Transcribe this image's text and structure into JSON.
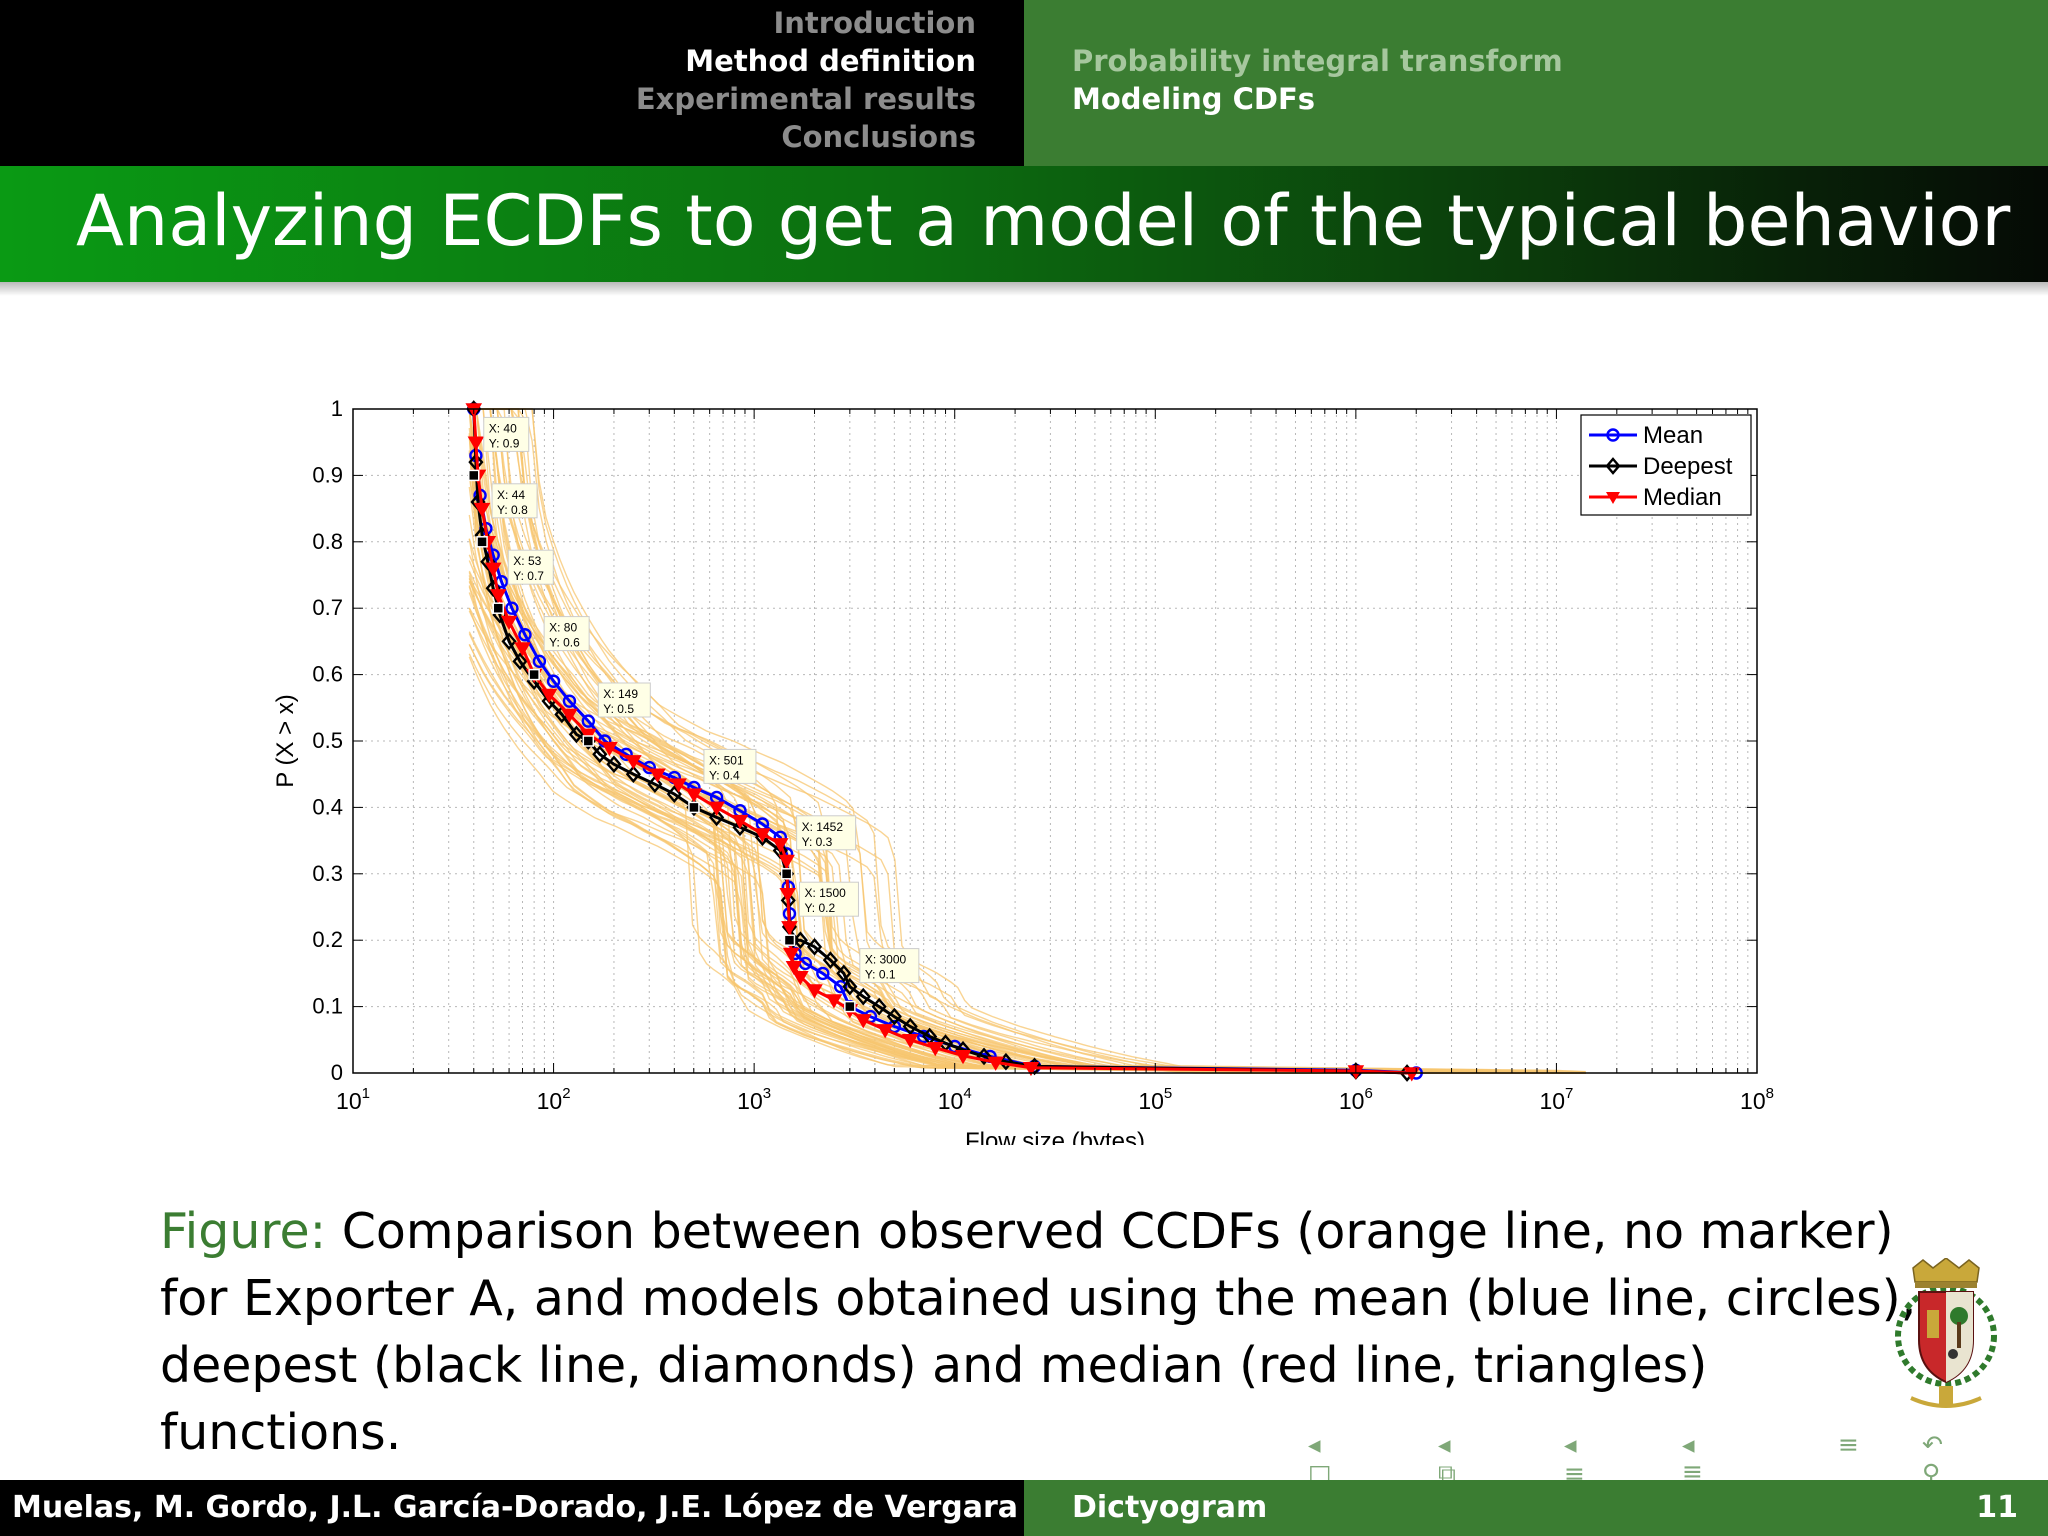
{
  "nav": {
    "sections": [
      {
        "label": "Introduction",
        "active": false
      },
      {
        "label": "Method definition",
        "active": true
      },
      {
        "label": "Experimental results",
        "active": false
      },
      {
        "label": "Conclusions",
        "active": false
      }
    ],
    "subsections": [
      {
        "label": "Probability integral transform",
        "active": false
      },
      {
        "label": "Modeling CDFs",
        "active": true
      }
    ]
  },
  "frame": {
    "title": "Analyzing ECDFs to get a model of the typical behavior"
  },
  "chart_data": {
    "type": "line",
    "xscale": "log",
    "xlabel": "Flow size (bytes)",
    "ylabel": "P (X > x)",
    "xlim": [
      10,
      100000000
    ],
    "ylim": [
      0,
      1
    ],
    "xtick_labels": [
      {
        "value": 10,
        "base": "10",
        "exp": "1"
      },
      {
        "value": 100,
        "base": "10",
        "exp": "2"
      },
      {
        "value": 1000,
        "base": "10",
        "exp": "3"
      },
      {
        "value": 10000,
        "base": "10",
        "exp": "4"
      },
      {
        "value": 100000,
        "base": "10",
        "exp": "5"
      },
      {
        "value": 1000000,
        "base": "10",
        "exp": "6"
      },
      {
        "value": 10000000,
        "base": "10",
        "exp": "7"
      },
      {
        "value": 100000000,
        "base": "10",
        "exp": "8"
      }
    ],
    "ytick_labels": [
      "0",
      "0.1",
      "0.2",
      "0.3",
      "0.4",
      "0.5",
      "0.6",
      "0.7",
      "0.8",
      "0.9",
      "1"
    ],
    "grid": true,
    "legend_position": "top-right",
    "series": [
      {
        "name": "Mean",
        "color": "#0000ff",
        "marker": "circle",
        "x": [
          40,
          41,
          43,
          46,
          50,
          55,
          62,
          72,
          85,
          100,
          120,
          149,
          180,
          230,
          300,
          400,
          501,
          650,
          850,
          1100,
          1350,
          1452,
          1480,
          1500,
          1530,
          1600,
          1800,
          2200,
          2700,
          3000,
          3800,
          5000,
          7000,
          10000,
          15000,
          25000,
          1000000,
          2000000
        ],
        "y": [
          1,
          0.93,
          0.87,
          0.82,
          0.78,
          0.74,
          0.7,
          0.66,
          0.62,
          0.59,
          0.56,
          0.53,
          0.5,
          0.48,
          0.46,
          0.445,
          0.43,
          0.415,
          0.395,
          0.375,
          0.355,
          0.33,
          0.28,
          0.24,
          0.2,
          0.18,
          0.165,
          0.15,
          0.13,
          0.1,
          0.085,
          0.07,
          0.055,
          0.04,
          0.025,
          0.01,
          0.004,
          0
        ]
      },
      {
        "name": "Deepest",
        "color": "#000000",
        "marker": "diamond",
        "x": [
          40,
          41,
          42,
          44,
          47,
          50,
          54,
          60,
          68,
          80,
          95,
          110,
          130,
          149,
          170,
          200,
          250,
          320,
          400,
          501,
          650,
          850,
          1100,
          1350,
          1452,
          1480,
          1500,
          1550,
          1700,
          2000,
          2400,
          2800,
          3000,
          3500,
          4200,
          5000,
          6000,
          7500,
          9000,
          11000,
          14000,
          18000,
          25000,
          1000000,
          1800000
        ],
        "y": [
          1,
          0.92,
          0.86,
          0.81,
          0.77,
          0.73,
          0.69,
          0.65,
          0.62,
          0.59,
          0.56,
          0.54,
          0.51,
          0.5,
          0.48,
          0.465,
          0.45,
          0.435,
          0.42,
          0.4,
          0.385,
          0.37,
          0.355,
          0.335,
          0.3,
          0.26,
          0.22,
          0.2,
          0.2,
          0.19,
          0.17,
          0.15,
          0.13,
          0.115,
          0.1,
          0.085,
          0.07,
          0.055,
          0.045,
          0.035,
          0.025,
          0.017,
          0.01,
          0.003,
          0
        ]
      },
      {
        "name": "Median",
        "color": "#ff0000",
        "marker": "triangle",
        "x": [
          40,
          41,
          42,
          44,
          47,
          50,
          53,
          60,
          70,
          80,
          95,
          120,
          149,
          190,
          250,
          330,
          420,
          501,
          650,
          850,
          1100,
          1350,
          1452,
          1470,
          1500,
          1530,
          1580,
          1700,
          2000,
          2500,
          3000,
          3500,
          4500,
          6000,
          8000,
          11000,
          16000,
          24000,
          1000000,
          1900000
        ],
        "y": [
          1,
          0.95,
          0.9,
          0.85,
          0.8,
          0.76,
          0.72,
          0.68,
          0.64,
          0.6,
          0.57,
          0.54,
          0.51,
          0.49,
          0.47,
          0.45,
          0.435,
          0.42,
          0.4,
          0.38,
          0.36,
          0.345,
          0.32,
          0.27,
          0.22,
          0.18,
          0.16,
          0.145,
          0.125,
          0.11,
          0.095,
          0.08,
          0.065,
          0.05,
          0.038,
          0.026,
          0.016,
          0.008,
          0.003,
          0
        ]
      }
    ],
    "annotations": [
      {
        "x": 40,
        "y": 0.9,
        "label_x": "X: 40",
        "label_y": "Y: 0.9"
      },
      {
        "x": 44,
        "y": 0.8,
        "label_x": "X: 44",
        "label_y": "Y: 0.8"
      },
      {
        "x": 53,
        "y": 0.7,
        "label_x": "X: 53",
        "label_y": "Y: 0.7"
      },
      {
        "x": 80,
        "y": 0.6,
        "label_x": "X: 80",
        "label_y": "Y: 0.6"
      },
      {
        "x": 149,
        "y": 0.5,
        "label_x": "X: 149",
        "label_y": "Y: 0.5"
      },
      {
        "x": 501,
        "y": 0.4,
        "label_x": "X: 501",
        "label_y": "Y: 0.4"
      },
      {
        "x": 1452,
        "y": 0.3,
        "label_x": "X: 1452",
        "label_y": "Y: 0.3"
      },
      {
        "x": 1500,
        "y": 0.2,
        "label_x": "X: 1500",
        "label_y": "Y: 0.2"
      },
      {
        "x": 3000,
        "y": 0.1,
        "label_x": "X: 3000",
        "label_y": "Y: 0.1"
      }
    ],
    "observed_ccdf_color": "#f7c66f"
  },
  "caption": {
    "label": "Figure:",
    "text": "Comparison between observed CCDFs (orange line, no marker) for Exporter A, and models obtained using the mean (blue line, circles), deepest (black line, diamonds) and median (red line, triangles) functions."
  },
  "crest": {
    "icon": "university-crest-icon",
    "colors": {
      "red": "#c8282a",
      "green": "#2f7a2c",
      "gold": "#c9a83a"
    }
  },
  "navigation_symbols": [
    "frame-nav-icon",
    "section-nav-icon",
    "subsection-nav-icon",
    "slide-nav-icon",
    "appendix-icon",
    "back-search-icon"
  ],
  "footer": {
    "authors": "D. Muelas, M. Gordo, J.L. García-Dorado, J.E. López de Vergara",
    "short_title": "Dictyogram",
    "page": "11"
  }
}
